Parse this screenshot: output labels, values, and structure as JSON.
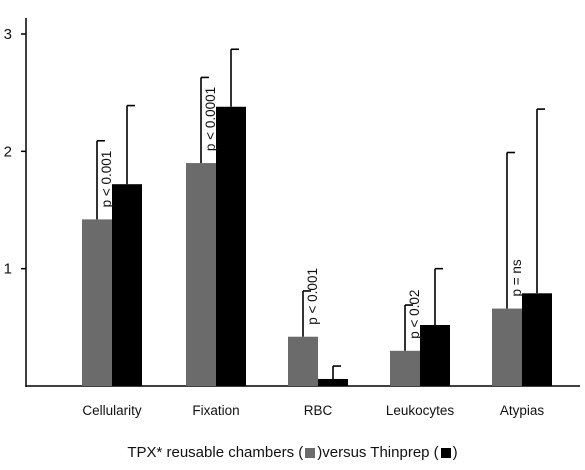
{
  "chart_data": {
    "type": "bar",
    "categories": [
      "Cellularity",
      "Fixation",
      "RBC",
      "Leukocytes",
      "Atypias"
    ],
    "series": [
      {
        "values": [
          1.42,
          1.9,
          0.42,
          0.3,
          0.66
        ],
        "errors": [
          0.67,
          0.73,
          0.39,
          0.39,
          1.33
        ],
        "color": "#6b6b6b"
      },
      {
        "values": [
          1.72,
          2.38,
          0.06,
          0.52,
          0.79
        ],
        "errors": [
          0.67,
          0.49,
          0.11,
          0.48,
          1.57
        ],
        "color": "#000000"
      }
    ],
    "p_values": [
      "p < 0.001",
      "p < 0.0001",
      "p < 0.001",
      "p < 0.02",
      "p = ns"
    ],
    "yticks": [
      "1",
      "2",
      "3"
    ],
    "ylim": [
      0,
      3.2
    ],
    "legend": {
      "prefix": "TPX* reusable chambers (",
      "middle": ")versus Thinprep (",
      "suffix": ")"
    }
  }
}
